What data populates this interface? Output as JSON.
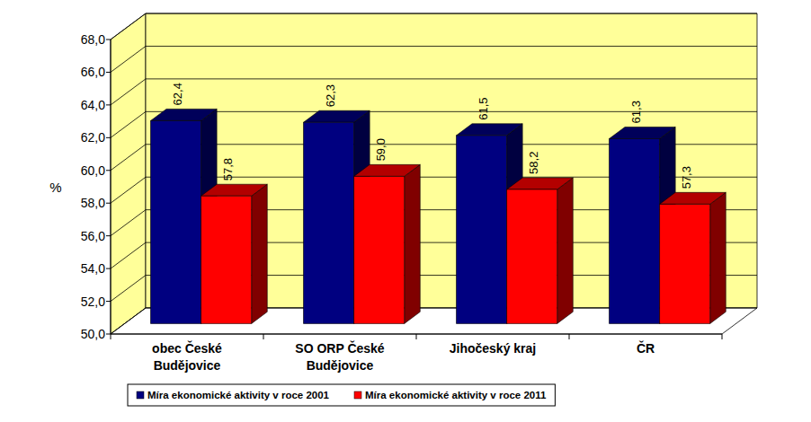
{
  "chart_data": {
    "type": "bar",
    "y_label": "%",
    "categories": [
      "obec České\nBudějovice",
      "SO ORP České\nBudějovice",
      "Jihočeský kraj",
      "ČR"
    ],
    "series": [
      {
        "name": "Míra ekonomické aktivity v roce 2001",
        "color": "#000080",
        "values": [
          62.4,
          62.3,
          61.5,
          61.3
        ],
        "value_labels": [
          "62,4",
          "62,3",
          "61,5",
          "61,3"
        ]
      },
      {
        "name": "Míra ekonomické aktivity v roce 2011",
        "color": "#ff0000",
        "values": [
          57.8,
          59.0,
          58.2,
          57.3
        ],
        "value_labels": [
          "57,8",
          "59,0",
          "58,2",
          "57,3"
        ]
      }
    ],
    "ylim": [
      50,
      68
    ],
    "yticks": [
      {
        "value": 50,
        "label": "50,0"
      },
      {
        "value": 52,
        "label": "52,0"
      },
      {
        "value": 54,
        "label": "54,0"
      },
      {
        "value": 56,
        "label": "56,0"
      },
      {
        "value": 58,
        "label": "58,0"
      },
      {
        "value": 60,
        "label": "60,0"
      },
      {
        "value": 62,
        "label": "62,0"
      },
      {
        "value": 64,
        "label": "64,0"
      },
      {
        "value": 66,
        "label": "66,0"
      },
      {
        "value": 68,
        "label": "68,0"
      }
    ],
    "grid": true,
    "data_labels": true,
    "legend": "bottom"
  }
}
